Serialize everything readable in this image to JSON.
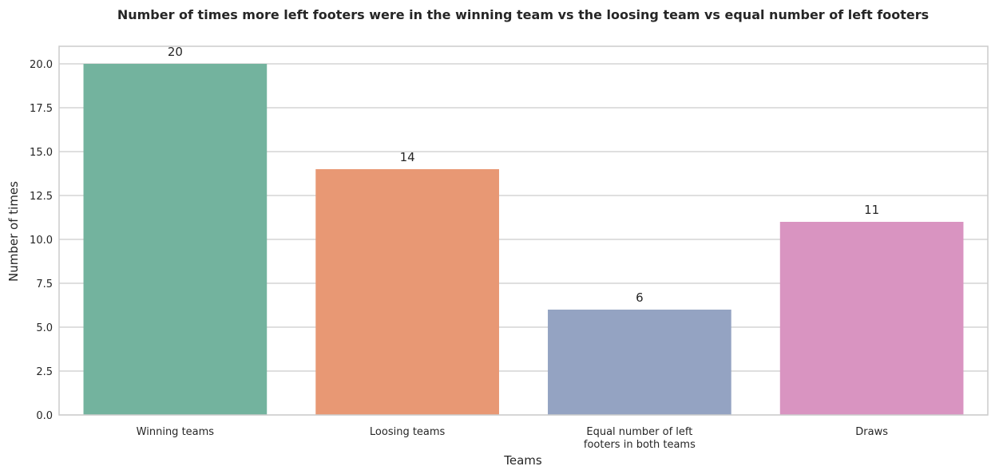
{
  "chart_data": {
    "type": "bar",
    "title": "Number of times more left footers were in the winning team vs the loosing team vs equal number of left footers",
    "xlabel": "Teams",
    "ylabel": "Number of times",
    "categories": [
      [
        "Winning teams"
      ],
      [
        "Loosing teams"
      ],
      [
        "Equal number of left",
        "footers in both teams"
      ],
      [
        "Draws"
      ]
    ],
    "values": [
      20,
      14,
      6,
      11
    ],
    "value_labels": [
      "20",
      "14",
      "6",
      "11"
    ],
    "colors": [
      "#73b39e",
      "#e89874",
      "#94a3c2",
      "#d994c1"
    ],
    "ylim": [
      0,
      21
    ],
    "yticks": [
      0.0,
      2.5,
      5.0,
      7.5,
      10.0,
      12.5,
      15.0,
      17.5,
      20.0
    ],
    "ytick_labels": [
      "0.0",
      "2.5",
      "5.0",
      "7.5",
      "10.0",
      "12.5",
      "15.0",
      "17.5",
      "20.0"
    ],
    "grid": "horizontal",
    "legend": "none"
  }
}
